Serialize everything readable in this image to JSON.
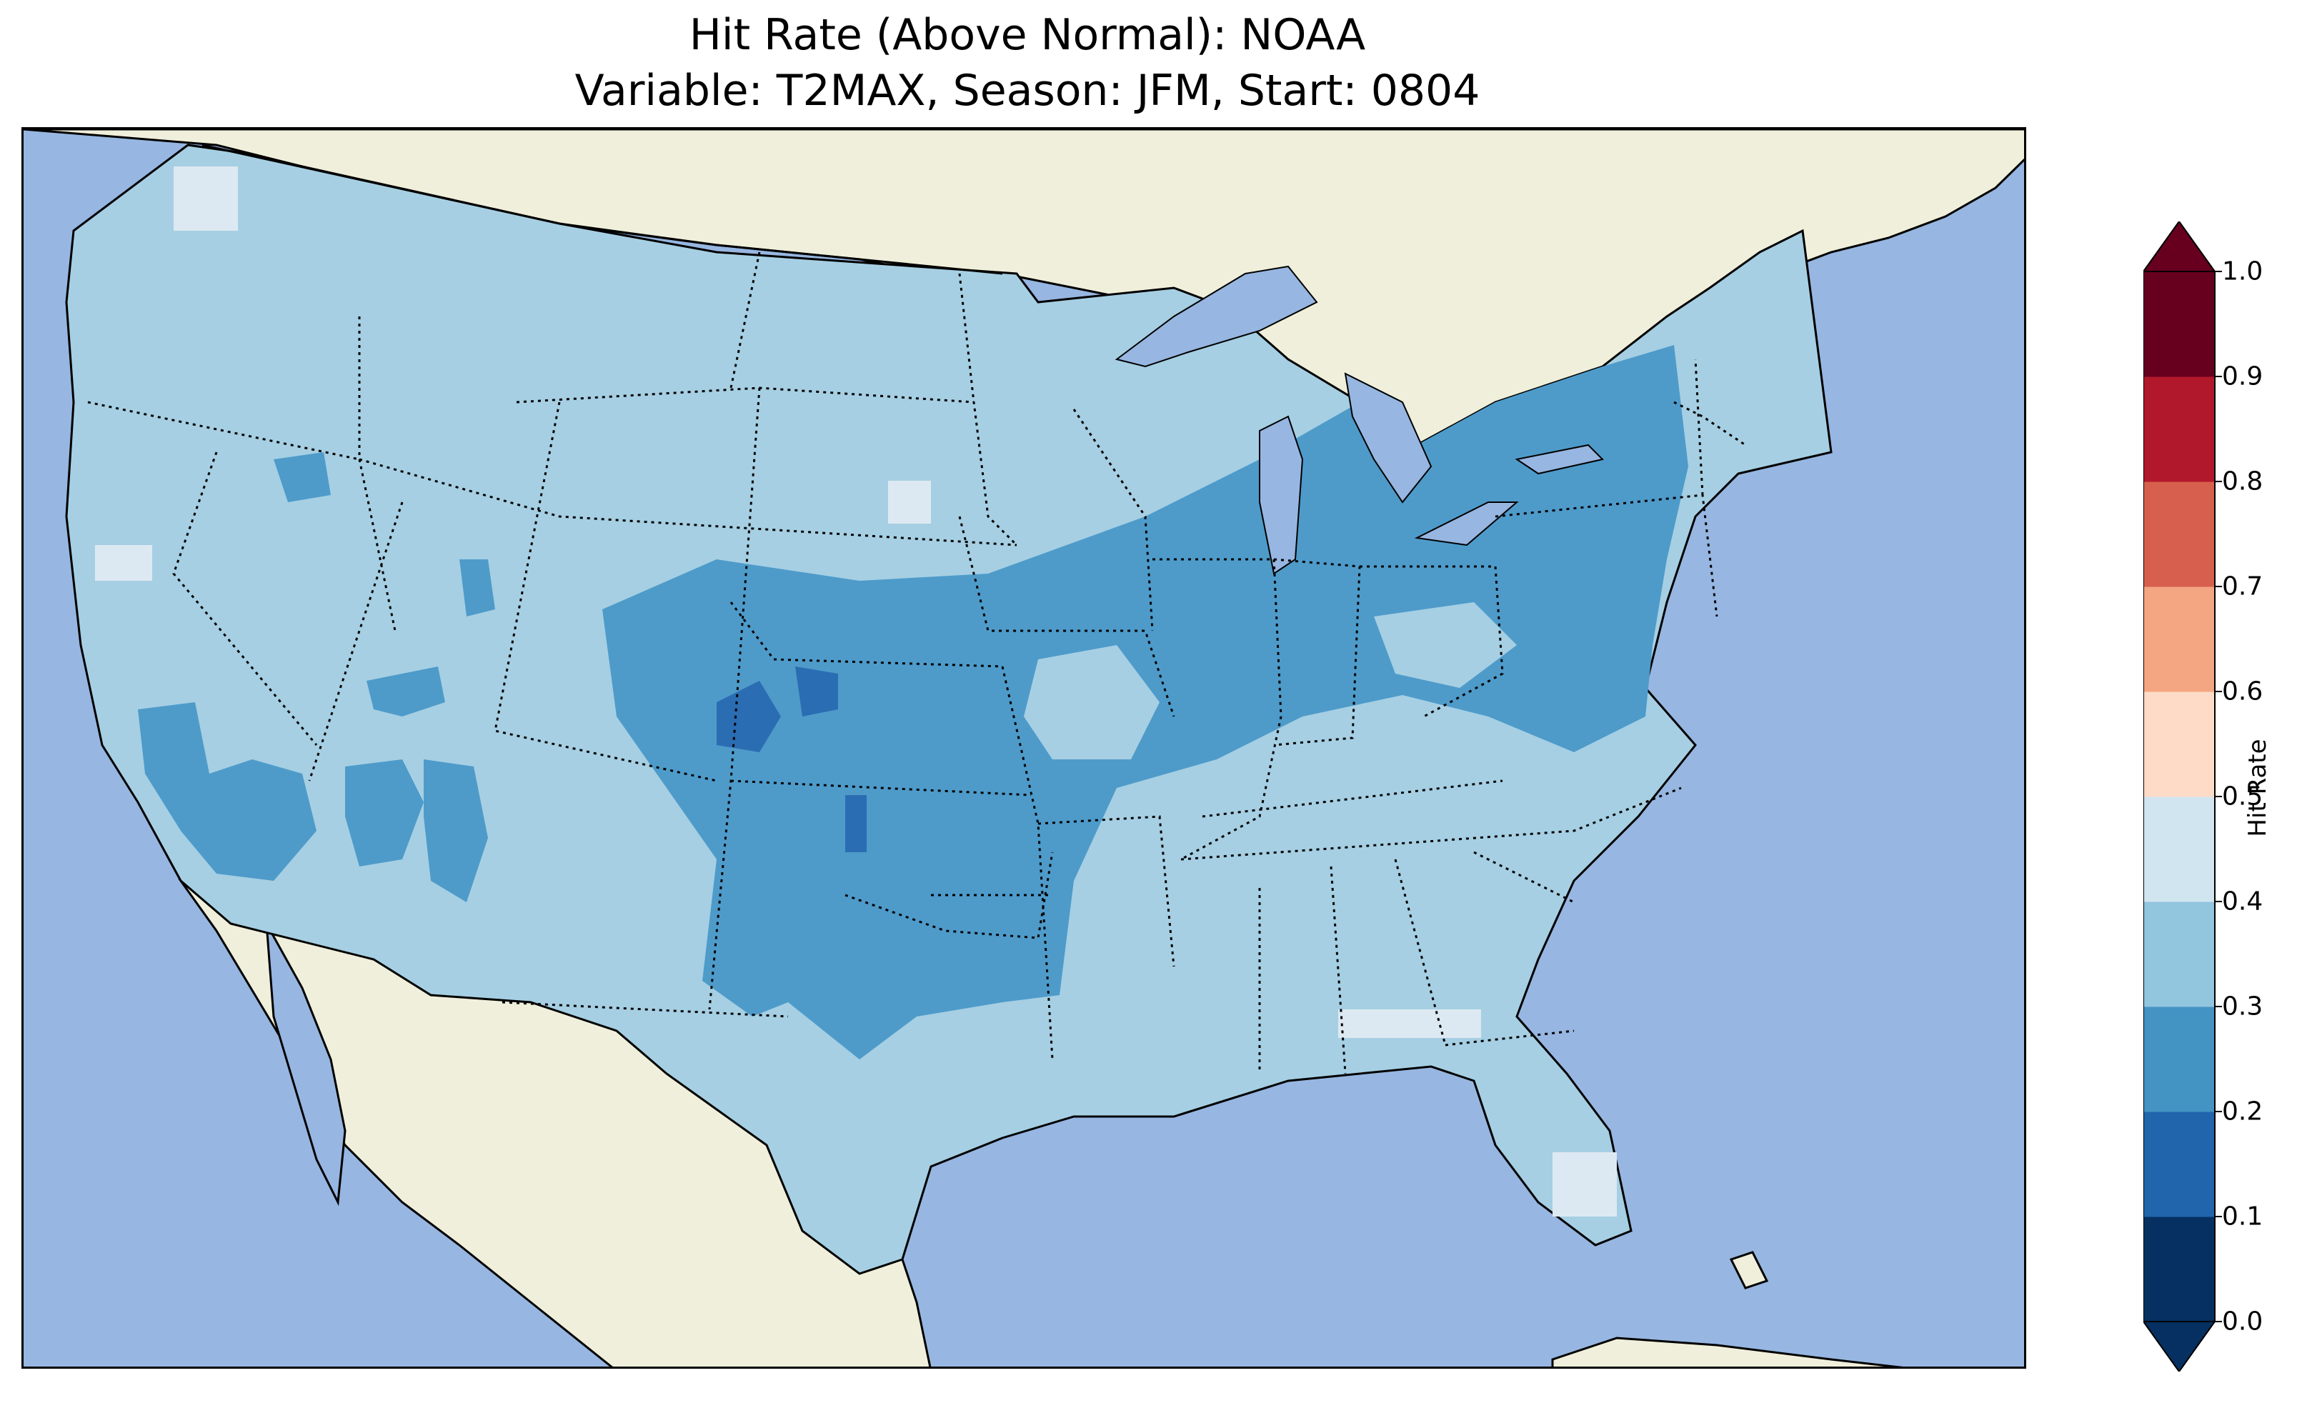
{
  "title": {
    "line1": "Hit Rate (Above Normal): NOAA",
    "line2": "Variable: T2MAX, Season: JFM, Start: 0804"
  },
  "colors": {
    "ocean": "#97b6e1",
    "land": "#efefdb",
    "coast": "#000000"
  },
  "legend": {
    "label": "Hit Rate",
    "ticks": [
      "0.0",
      "0.1",
      "0.2",
      "0.3",
      "0.4",
      "0.5",
      "0.6",
      "0.7",
      "0.8",
      "0.9",
      "1.0"
    ],
    "bins": [
      {
        "range": [
          0.0,
          0.1
        ],
        "color": "#053061"
      },
      {
        "range": [
          0.1,
          0.2
        ],
        "color": "#2166ac"
      },
      {
        "range": [
          0.2,
          0.3
        ],
        "color": "#4393c3"
      },
      {
        "range": [
          0.3,
          0.4
        ],
        "color": "#92c5de"
      },
      {
        "range": [
          0.4,
          0.5
        ],
        "color": "#d1e5f0"
      },
      {
        "range": [
          0.5,
          0.6
        ],
        "color": "#fddbc7"
      },
      {
        "range": [
          0.6,
          0.7
        ],
        "color": "#f4a582"
      },
      {
        "range": [
          0.7,
          0.8
        ],
        "color": "#d6604d"
      },
      {
        "range": [
          0.8,
          0.9
        ],
        "color": "#b2182b"
      },
      {
        "range": [
          0.9,
          1.0
        ],
        "color": "#67001f"
      }
    ],
    "extend": "both"
  },
  "map": {
    "region": "CONUS",
    "field_levels": {
      "background": 0.35,
      "central_band": 0.25,
      "hotspot": 0.15,
      "high_spots": 0.45
    }
  }
}
